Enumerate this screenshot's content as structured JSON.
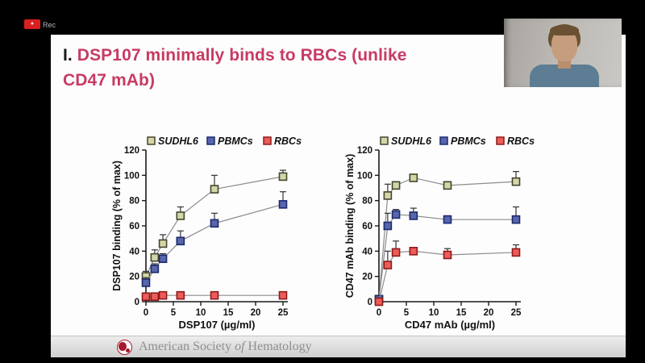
{
  "recorder": {
    "badge_text": "●",
    "rec_label": "Rec"
  },
  "slide": {
    "title": {
      "prefix": "I.",
      "line1": " DSP107 minimally binds to RBCs (unlike",
      "line2": "CD47 mAb)"
    }
  },
  "footer": {
    "org_pre": "American Society ",
    "org_italic": "of",
    "org_post": " Hematology",
    "logo": "ash-blood-cells-logo",
    "logo_color": "#a6192e"
  },
  "colors": {
    "title_accent": "#c73b63",
    "line_gray": "#8c8c8c",
    "axis_black": "#1a1a1a"
  },
  "chart_data": [
    {
      "type": "scatter",
      "title": "",
      "xlabel": "DSP107 (µg/ml)",
      "ylabel": "DSP107 binding (% of max)",
      "xlim": [
        0,
        26
      ],
      "ylim": [
        0,
        120
      ],
      "xticks": [
        0,
        5,
        10,
        15,
        20,
        25
      ],
      "yticks": [
        0,
        20,
        40,
        60,
        80,
        100,
        120
      ],
      "legend_position": "top",
      "grid": false,
      "x": [
        0,
        1.6,
        3.1,
        6.3,
        12.5,
        25
      ],
      "series": [
        {
          "name": "SUDHL6",
          "color": "#d3d6a8",
          "edge": "#44442c",
          "values": [
            20,
            35,
            46,
            68,
            89,
            99
          ],
          "errors": [
            4,
            6,
            7,
            7,
            11,
            5
          ]
        },
        {
          "name": "PBMCs",
          "color": "#5766ad",
          "edge": "#1c2a6b",
          "values": [
            15,
            26,
            34,
            48,
            62,
            77
          ],
          "errors": [
            4,
            4,
            4,
            8,
            8,
            10
          ]
        },
        {
          "name": "RBCs",
          "color": "#ee5c57",
          "edge": "#8c1b1b",
          "values": [
            4,
            4,
            5,
            5,
            5,
            5
          ],
          "errors": [
            1,
            1,
            1,
            1,
            1,
            1
          ]
        }
      ]
    },
    {
      "type": "scatter",
      "title": "",
      "xlabel": "CD47 mAb (µg/ml)",
      "ylabel": "CD47 mAb binding (% of max)",
      "xlim": [
        0,
        26
      ],
      "ylim": [
        0,
        120
      ],
      "xticks": [
        0,
        5,
        10,
        15,
        20,
        25
      ],
      "yticks": [
        0,
        20,
        40,
        60,
        80,
        100,
        120
      ],
      "legend_position": "top",
      "grid": false,
      "x": [
        0,
        1.6,
        3.1,
        6.3,
        12.5,
        25
      ],
      "series": [
        {
          "name": "SUDHL6",
          "color": "#d3d6a8",
          "edge": "#44442c",
          "values": [
            2,
            84,
            92,
            98,
            92,
            95
          ],
          "errors": [
            0,
            9,
            3,
            2,
            3,
            8
          ]
        },
        {
          "name": "PBMCs",
          "color": "#5766ad",
          "edge": "#1c2a6b",
          "values": [
            2,
            60,
            69,
            68,
            65,
            65
          ],
          "errors": [
            0,
            10,
            4,
            6,
            3,
            10
          ]
        },
        {
          "name": "RBCs",
          "color": "#ee5c57",
          "edge": "#8c1b1b",
          "values": [
            0,
            29,
            39,
            40,
            37,
            39
          ],
          "errors": [
            0,
            11,
            9,
            3,
            5,
            6
          ]
        }
      ]
    }
  ]
}
